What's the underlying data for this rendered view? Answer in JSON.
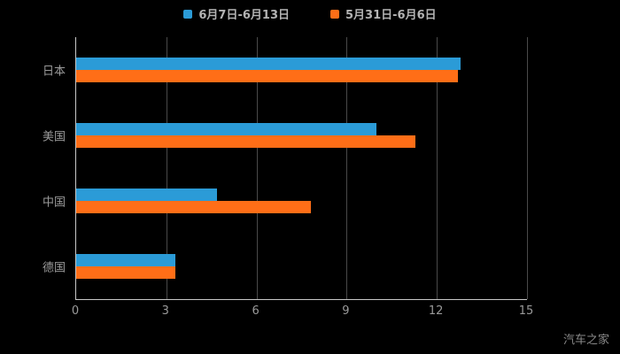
{
  "chart_data": {
    "type": "bar",
    "orientation": "horizontal",
    "title": "",
    "categories": [
      "日本",
      "美国",
      "中国",
      "德国"
    ],
    "series": [
      {
        "name": "6月7日-6月13日",
        "color": "#2b9bd7",
        "values": [
          12.8,
          10.0,
          4.7,
          3.3
        ]
      },
      {
        "name": "5月31日-6月6日",
        "color": "#ff6e17",
        "values": [
          12.7,
          11.3,
          7.8,
          3.3
        ]
      }
    ],
    "xlim": [
      0,
      15
    ],
    "x_ticks": [
      0,
      3,
      6,
      9,
      12,
      15
    ],
    "legend_position": "top",
    "grid": true,
    "background": "#000000"
  },
  "watermark": "汽车之家",
  "colors": {
    "background": "#000000",
    "axis": "#c8c8c8",
    "grid": "#4a4a4a",
    "label_text": "#9a9a9a",
    "legend_text": "#b3b3b3"
  }
}
